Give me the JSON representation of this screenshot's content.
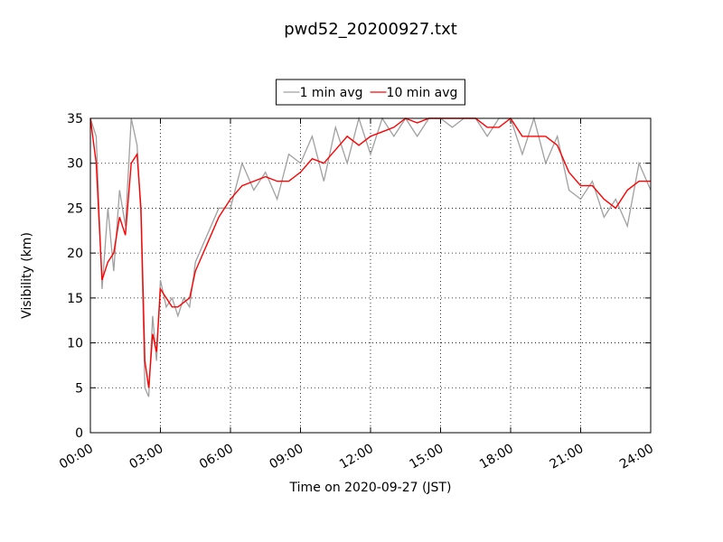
{
  "chart_data": {
    "type": "line",
    "title": "pwd52_20200927.txt",
    "xlabel": "Time on 2020-09-27 (JST)",
    "ylabel": "Visibility (km)",
    "x": [
      "00:00",
      "00:15",
      "00:30",
      "00:45",
      "01:00",
      "01:15",
      "01:30",
      "01:45",
      "02:00",
      "02:10",
      "02:20",
      "02:30",
      "02:40",
      "02:50",
      "03:00",
      "03:15",
      "03:30",
      "03:45",
      "04:00",
      "04:15",
      "04:30",
      "05:00",
      "05:30",
      "06:00",
      "06:30",
      "07:00",
      "07:30",
      "08:00",
      "08:30",
      "09:00",
      "09:30",
      "10:00",
      "10:30",
      "11:00",
      "11:30",
      "12:00",
      "12:30",
      "13:00",
      "13:30",
      "14:00",
      "14:30",
      "15:00",
      "15:30",
      "16:00",
      "16:30",
      "17:00",
      "17:30",
      "18:00",
      "18:30",
      "19:00",
      "19:30",
      "20:00",
      "20:30",
      "21:00",
      "21:30",
      "22:00",
      "22:30",
      "23:00",
      "23:30",
      "24:00"
    ],
    "series": [
      {
        "name": "1 min avg",
        "color": "#a0a0a0",
        "values": [
          35,
          33,
          16,
          25,
          18,
          27,
          23,
          35,
          32,
          24,
          5,
          4,
          13,
          8,
          17,
          14,
          15,
          13,
          15,
          14,
          19,
          22,
          25,
          25,
          30,
          27,
          29,
          26,
          31,
          30,
          33,
          28,
          34,
          30,
          35,
          31,
          35,
          33,
          35,
          33,
          35,
          35,
          34,
          35,
          35,
          33,
          35,
          35,
          31,
          35,
          30,
          33,
          27,
          26,
          28,
          24,
          26,
          23,
          30,
          27
        ]
      },
      {
        "name": "10 min avg",
        "color": "#ff0000",
        "values": [
          35,
          30,
          17,
          19,
          20,
          24,
          22,
          30,
          31,
          25,
          8,
          5,
          11,
          9,
          16,
          15,
          14,
          14,
          14.5,
          15,
          18,
          21,
          24,
          26,
          27.5,
          28,
          28.5,
          28,
          28,
          29,
          30.5,
          30,
          31.5,
          33,
          32,
          33,
          33.5,
          34,
          35,
          34.5,
          35,
          35,
          35,
          35,
          35,
          34,
          34,
          35,
          33,
          33,
          33,
          32,
          29,
          27.5,
          27.5,
          26,
          25,
          27,
          28,
          28
        ]
      }
    ],
    "xlim": [
      "00:00",
      "24:00"
    ],
    "xticks": [
      "00:00",
      "03:00",
      "06:00",
      "09:00",
      "12:00",
      "15:00",
      "18:00",
      "21:00",
      "24:00"
    ],
    "ylim": [
      0,
      35
    ],
    "yticks": [
      0,
      5,
      10,
      15,
      20,
      25,
      30,
      35
    ],
    "grid": true,
    "legend": "top"
  }
}
